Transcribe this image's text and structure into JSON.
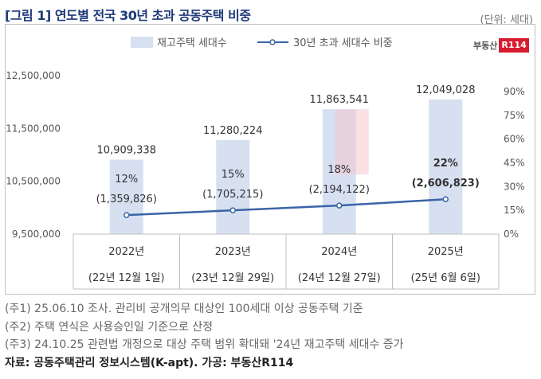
{
  "header": {
    "title": "[그림 1] 연도별 전국 30년 초과 공동주택 비중",
    "unit": "(단위: 세대)"
  },
  "brand": {
    "text": "부동산",
    "box": "R114"
  },
  "chart_data": {
    "type": "bar",
    "categories": [
      "2022년",
      "2023년",
      "2024년",
      "2025년"
    ],
    "subcategories": [
      "(22년 12월 1일)",
      "(23년 12월 29일)",
      "(24년 12월 27일)",
      "(25년 6월 6일)"
    ],
    "series": [
      {
        "name": "재고주택 세대수",
        "type": "bar",
        "axis": "left",
        "values": [
          10909338,
          11280224,
          11863541,
          12049028
        ],
        "labels": [
          "10,909,338",
          "11,280,224",
          "11,863,541",
          "12,049,028"
        ],
        "color": "#d6e0f1"
      },
      {
        "name": "30년 초과 세대수 비중",
        "type": "line",
        "axis": "right",
        "values": [
          12,
          15,
          18,
          22
        ],
        "labels": [
          "12%",
          "15%",
          "18%",
          "22%"
        ],
        "counts": [
          "(1,359,826)",
          "(1,705,215)",
          "(2,194,122)",
          "(2,606,823)"
        ],
        "color": "#3a64a8"
      }
    ],
    "y_left": {
      "lim": [
        9500000,
        12500000
      ],
      "ticks": [
        "9,500,000",
        "10,500,000",
        "11,500,000",
        "12,500,000"
      ],
      "tick_values": [
        9500000,
        10500000,
        11500000,
        12500000
      ]
    },
    "y_right": {
      "lim": [
        0,
        100
      ],
      "ticks": [
        "0%",
        "15%",
        "30%",
        "45%",
        "60%",
        "75%",
        "90%"
      ],
      "tick_values": [
        0,
        15,
        30,
        45,
        60,
        75,
        90
      ]
    },
    "legend": "top-center",
    "grid": false,
    "highlight_last": true
  },
  "notes": [
    "(주1) 25.06.10 조사. 관리비 공개의무 대상인 100세대 이상 공동주택 기준",
    "(주2) 주택 연식은 사용승인일 기준으로 산정",
    "(주3) 24.10.25 관련법 개정으로 대상 주택 범위 확대돼 '24년 재고주택 세대수 증가"
  ],
  "source": "자료: 공동주택관리 정보시스템(K-apt). 가공: 부동산R114"
}
